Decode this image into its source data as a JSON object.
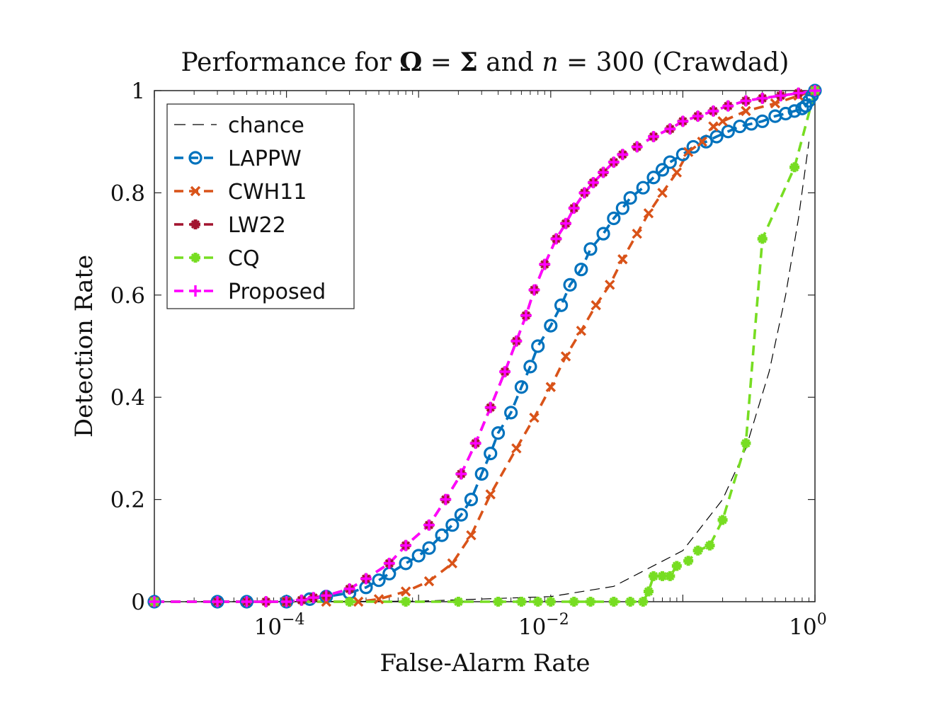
{
  "chart_data": {
    "type": "line",
    "title": "Performance for Ω = Σ and n = 300 (Crawdad)",
    "title_parts": {
      "prefix": "Performance for ",
      "omega": "Ω",
      "equals1": " = ",
      "sigma": "Σ",
      "middle": " and ",
      "n": "n",
      "equals2": " = ",
      "suffix": "300 (Crawdad)"
    },
    "xlabel": "False-Alarm Rate",
    "ylabel": "Detection Rate",
    "xscale": "log",
    "xlim_exponents": [
      -5,
      0
    ],
    "ylim": [
      0,
      1
    ],
    "x_ticks": [
      {
        "base": "10",
        "exp": "−4",
        "log": -4
      },
      {
        "base": "10",
        "exp": "−2",
        "log": -2
      },
      {
        "base": "10",
        "exp": "0",
        "log": 0
      }
    ],
    "y_ticks": [
      {
        "label": "0",
        "value": 0
      },
      {
        "label": "0.2",
        "value": 0.2
      },
      {
        "label": "0.4",
        "value": 0.4
      },
      {
        "label": "0.6",
        "value": 0.6
      },
      {
        "label": "0.8",
        "value": 0.8
      },
      {
        "label": "1",
        "value": 1
      }
    ],
    "legend_location": "top-left",
    "series": [
      {
        "name": "chance",
        "color": "#000000",
        "marker": "none",
        "dash": "dashed-thin",
        "points": [
          [
            1e-05,
            1e-05
          ],
          [
            0.0001,
            0.0001
          ],
          [
            0.001,
            0.001
          ],
          [
            0.01,
            0.01
          ],
          [
            0.03,
            0.03
          ],
          [
            0.1,
            0.1
          ],
          [
            0.2,
            0.2
          ],
          [
            0.3,
            0.3
          ],
          [
            0.45,
            0.45
          ],
          [
            0.6,
            0.6
          ],
          [
            0.75,
            0.75
          ],
          [
            0.9,
            0.9
          ]
        ]
      },
      {
        "name": "LAPPW",
        "color": "#0072BD",
        "marker": "circle",
        "dash": "dashed",
        "points": [
          [
            1e-05,
            0
          ],
          [
            3e-05,
            0
          ],
          [
            5e-05,
            0
          ],
          [
            0.0001,
            0
          ],
          [
            0.00015,
            0.005
          ],
          [
            0.0002,
            0.01
          ],
          [
            0.0003,
            0.017
          ],
          [
            0.0004,
            0.028
          ],
          [
            0.0005,
            0.042
          ],
          [
            0.0006,
            0.055
          ],
          [
            0.0008,
            0.075
          ],
          [
            0.001,
            0.09
          ],
          [
            0.0012,
            0.105
          ],
          [
            0.0015,
            0.13
          ],
          [
            0.0018,
            0.15
          ],
          [
            0.0021,
            0.17
          ],
          [
            0.0025,
            0.2
          ],
          [
            0.003,
            0.25
          ],
          [
            0.0035,
            0.29
          ],
          [
            0.004,
            0.33
          ],
          [
            0.005,
            0.37
          ],
          [
            0.006,
            0.42
          ],
          [
            0.007,
            0.46
          ],
          [
            0.008,
            0.5
          ],
          [
            0.01,
            0.54
          ],
          [
            0.012,
            0.58
          ],
          [
            0.014,
            0.62
          ],
          [
            0.017,
            0.65
          ],
          [
            0.02,
            0.69
          ],
          [
            0.025,
            0.72
          ],
          [
            0.03,
            0.75
          ],
          [
            0.035,
            0.77
          ],
          [
            0.04,
            0.79
          ],
          [
            0.05,
            0.81
          ],
          [
            0.06,
            0.83
          ],
          [
            0.07,
            0.845
          ],
          [
            0.08,
            0.86
          ],
          [
            0.1,
            0.875
          ],
          [
            0.12,
            0.89
          ],
          [
            0.15,
            0.9
          ],
          [
            0.18,
            0.91
          ],
          [
            0.22,
            0.92
          ],
          [
            0.27,
            0.93
          ],
          [
            0.33,
            0.935
          ],
          [
            0.4,
            0.94
          ],
          [
            0.5,
            0.95
          ],
          [
            0.6,
            0.955
          ],
          [
            0.7,
            0.96
          ],
          [
            0.8,
            0.965
          ],
          [
            0.85,
            0.97
          ],
          [
            0.9,
            0.98
          ],
          [
            0.95,
            0.99
          ],
          [
            1,
            1
          ]
        ]
      },
      {
        "name": "CWH11",
        "color": "#D95319",
        "marker": "x",
        "dash": "dashed",
        "points": [
          [
            1e-05,
            0
          ],
          [
            0.0001,
            0
          ],
          [
            0.0002,
            0
          ],
          [
            0.00035,
            0
          ],
          [
            0.0005,
            0.005
          ],
          [
            0.0008,
            0.02
          ],
          [
            0.0012,
            0.04
          ],
          [
            0.0018,
            0.075
          ],
          [
            0.0025,
            0.13
          ],
          [
            0.0035,
            0.21
          ],
          [
            0.0055,
            0.3
          ],
          [
            0.0075,
            0.36
          ],
          [
            0.01,
            0.42
          ],
          [
            0.013,
            0.48
          ],
          [
            0.017,
            0.53
          ],
          [
            0.022,
            0.58
          ],
          [
            0.028,
            0.62
          ],
          [
            0.035,
            0.67
          ],
          [
            0.045,
            0.72
          ],
          [
            0.055,
            0.76
          ],
          [
            0.07,
            0.8
          ],
          [
            0.09,
            0.84
          ],
          [
            0.11,
            0.88
          ],
          [
            0.14,
            0.9
          ],
          [
            0.17,
            0.93
          ],
          [
            0.2,
            0.94
          ],
          [
            0.3,
            0.96
          ],
          [
            0.5,
            0.975
          ],
          [
            0.75,
            0.99
          ],
          [
            1,
            1
          ]
        ]
      },
      {
        "name": "LW22",
        "color": "#A2142F",
        "marker": "plus-bold",
        "dash": "dashed",
        "points": [
          [
            1e-05,
            0
          ],
          [
            3e-05,
            0
          ],
          [
            5e-05,
            0
          ],
          [
            7e-05,
            0
          ],
          [
            0.0001,
            0
          ],
          [
            0.00013,
            0.003
          ],
          [
            0.00016,
            0.008
          ],
          [
            0.0002,
            0.012
          ],
          [
            0.0003,
            0.025
          ],
          [
            0.0004,
            0.045
          ],
          [
            0.0006,
            0.075
          ],
          [
            0.0008,
            0.11
          ],
          [
            0.0012,
            0.15
          ],
          [
            0.0016,
            0.2
          ],
          [
            0.0021,
            0.25
          ],
          [
            0.0027,
            0.31
          ],
          [
            0.0035,
            0.38
          ],
          [
            0.0045,
            0.45
          ],
          [
            0.0055,
            0.51
          ],
          [
            0.0065,
            0.56
          ],
          [
            0.0075,
            0.61
          ],
          [
            0.009,
            0.66
          ],
          [
            0.011,
            0.71
          ],
          [
            0.013,
            0.74
          ],
          [
            0.015,
            0.77
          ],
          [
            0.018,
            0.8
          ],
          [
            0.021,
            0.82
          ],
          [
            0.025,
            0.84
          ],
          [
            0.03,
            0.86
          ],
          [
            0.035,
            0.875
          ],
          [
            0.045,
            0.89
          ],
          [
            0.06,
            0.91
          ],
          [
            0.08,
            0.925
          ],
          [
            0.1,
            0.94
          ],
          [
            0.13,
            0.95
          ],
          [
            0.17,
            0.96
          ],
          [
            0.22,
            0.97
          ],
          [
            0.3,
            0.98
          ],
          [
            0.4,
            0.985
          ],
          [
            0.55,
            0.99
          ],
          [
            0.75,
            0.995
          ],
          [
            1,
            1
          ]
        ]
      },
      {
        "name": "CQ",
        "color": "#77DD22",
        "marker": "plus-bold",
        "dash": "dashed",
        "points": [
          [
            1e-05,
            0
          ],
          [
            0.0003,
            0
          ],
          [
            0.0008,
            0
          ],
          [
            0.002,
            0
          ],
          [
            0.004,
            0
          ],
          [
            0.006,
            0
          ],
          [
            0.008,
            0
          ],
          [
            0.01,
            0
          ],
          [
            0.015,
            0
          ],
          [
            0.02,
            0
          ],
          [
            0.03,
            0
          ],
          [
            0.04,
            0
          ],
          [
            0.05,
            0
          ],
          [
            0.055,
            0.02
          ],
          [
            0.06,
            0.05
          ],
          [
            0.07,
            0.05
          ],
          [
            0.08,
            0.05
          ],
          [
            0.09,
            0.07
          ],
          [
            0.11,
            0.08
          ],
          [
            0.13,
            0.1
          ],
          [
            0.16,
            0.11
          ],
          [
            0.2,
            0.16
          ],
          [
            0.3,
            0.31
          ],
          [
            0.4,
            0.71
          ],
          [
            0.7,
            0.85
          ],
          [
            1,
            1
          ]
        ]
      },
      {
        "name": "Proposed",
        "color": "#FF00FF",
        "marker": "plus",
        "dash": "dashed",
        "points": [
          [
            1e-05,
            0
          ],
          [
            3e-05,
            0
          ],
          [
            5e-05,
            0
          ],
          [
            7e-05,
            0
          ],
          [
            0.0001,
            0
          ],
          [
            0.00013,
            0.003
          ],
          [
            0.00016,
            0.008
          ],
          [
            0.0002,
            0.012
          ],
          [
            0.0003,
            0.025
          ],
          [
            0.0004,
            0.045
          ],
          [
            0.0006,
            0.075
          ],
          [
            0.0008,
            0.11
          ],
          [
            0.0012,
            0.15
          ],
          [
            0.0016,
            0.2
          ],
          [
            0.0021,
            0.25
          ],
          [
            0.0027,
            0.31
          ],
          [
            0.0035,
            0.38
          ],
          [
            0.0045,
            0.45
          ],
          [
            0.0055,
            0.51
          ],
          [
            0.0065,
            0.56
          ],
          [
            0.0075,
            0.61
          ],
          [
            0.009,
            0.66
          ],
          [
            0.011,
            0.71
          ],
          [
            0.013,
            0.74
          ],
          [
            0.015,
            0.77
          ],
          [
            0.018,
            0.8
          ],
          [
            0.021,
            0.82
          ],
          [
            0.025,
            0.84
          ],
          [
            0.03,
            0.86
          ],
          [
            0.035,
            0.875
          ],
          [
            0.045,
            0.89
          ],
          [
            0.06,
            0.91
          ],
          [
            0.08,
            0.925
          ],
          [
            0.1,
            0.94
          ],
          [
            0.13,
            0.95
          ],
          [
            0.17,
            0.96
          ],
          [
            0.22,
            0.97
          ],
          [
            0.3,
            0.98
          ],
          [
            0.4,
            0.985
          ],
          [
            0.55,
            0.99
          ],
          [
            0.75,
            0.995
          ],
          [
            1,
            1
          ]
        ]
      }
    ]
  }
}
